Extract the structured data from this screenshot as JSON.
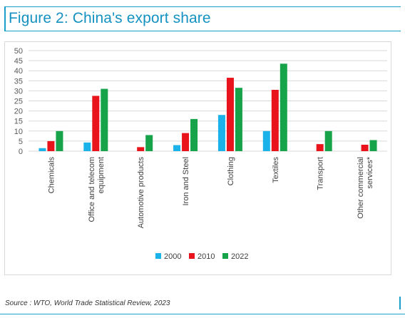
{
  "header": {
    "title": "Figure 2: China's export share"
  },
  "source": "Source : WTO, World Trade Statistical Review, 2023",
  "colors": {
    "2000": "#1ab2e8",
    "2010": "#e8131b",
    "2022": "#16a34a",
    "accent": "#1592c0"
  },
  "chart_data": {
    "type": "bar",
    "categories": [
      "Chemicals",
      "Office and telecom|equipment",
      "Automotive products",
      "Iron and Steel",
      "Clothing",
      "Textiles",
      "Transport",
      "Other commercial|services*"
    ],
    "series": [
      {
        "name": "2000",
        "values": [
          1.5,
          4.3,
          null,
          3,
          18,
          10,
          null,
          null
        ]
      },
      {
        "name": "2010",
        "values": [
          5,
          27.5,
          2,
          9,
          36.5,
          30.5,
          3.5,
          3.2
        ]
      },
      {
        "name": "2022",
        "values": [
          10,
          31,
          8,
          16,
          31.5,
          43.5,
          10,
          5.5
        ]
      }
    ],
    "yticks": [
      "0",
      "5",
      "10",
      "15",
      "20",
      "25",
      "30",
      "35",
      "40",
      "45",
      "50"
    ],
    "ylim": [
      0,
      50
    ],
    "grid": true,
    "legend": "bottom"
  }
}
